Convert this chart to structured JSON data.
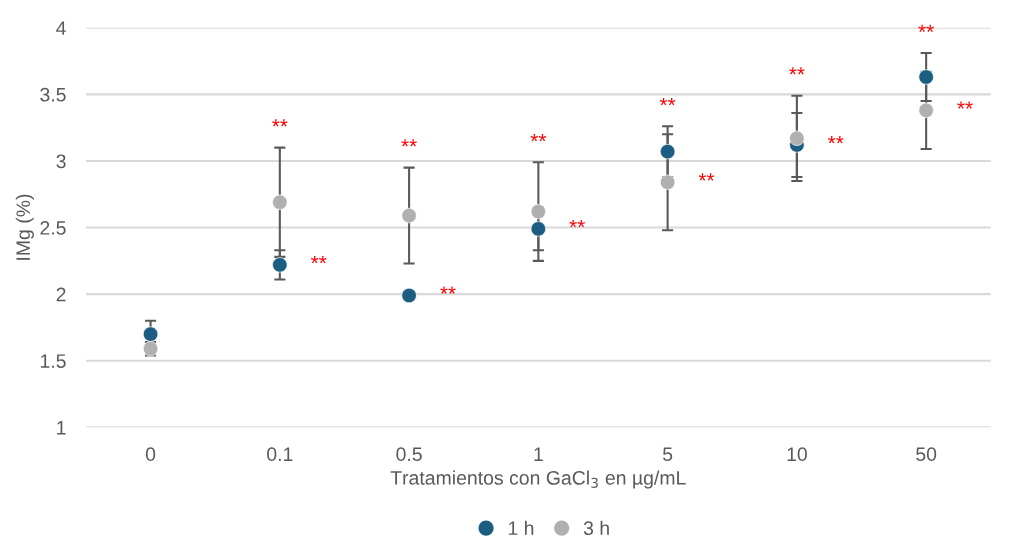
{
  "chart_data": {
    "type": "scatter",
    "xlabel": "Tratamientos con GaCl$_{3}$ en µg/mL",
    "ylabel": "IMg (%)",
    "categories": [
      "0",
      "0.1",
      "0.5",
      "1",
      "5",
      "10",
      "50"
    ],
    "series": [
      {
        "name": "1 h",
        "color": "#1b5e82",
        "values": [
          1.7,
          2.22,
          1.99,
          2.49,
          3.07,
          3.12,
          3.63
        ],
        "errors": [
          0.1,
          0.11,
          null,
          0.16,
          0.19,
          0.24,
          0.18
        ]
      },
      {
        "name": "3 h",
        "color": "#b0b0b0",
        "values": [
          1.59,
          2.69,
          2.59,
          2.62,
          2.84,
          3.17,
          3.38
        ],
        "errors": [
          0.05,
          0.41,
          0.36,
          0.37,
          0.36,
          0.32,
          0.29
        ]
      }
    ],
    "ylim": [
      1,
      4
    ],
    "yticks": [
      1,
      1.5,
      2,
      2.5,
      3,
      3.5,
      4
    ],
    "grid": "y",
    "legend": "bottom",
    "marker": "circle",
    "annotations": [
      {
        "text": "**",
        "x": "0.1",
        "y": 3.1
      },
      {
        "text": "**",
        "x": "0.1",
        "y": 2.22
      },
      {
        "text": "**",
        "x": "0.5",
        "y": 2.95
      },
      {
        "text": "**",
        "x": "0.5",
        "y": 1.99
      },
      {
        "text": "**",
        "x": "1",
        "y": 2.99
      },
      {
        "text": "**",
        "x": "1",
        "y": 2.49
      },
      {
        "text": "**",
        "x": "5",
        "y": 3.26
      },
      {
        "text": "**",
        "x": "5",
        "y": 2.84
      },
      {
        "text": "**",
        "x": "10",
        "y": 3.49
      },
      {
        "text": "**",
        "x": "10",
        "y": 3.12
      },
      {
        "text": "**",
        "x": "50",
        "y": 3.81
      },
      {
        "text": "**",
        "x": "50",
        "y": 3.38
      }
    ]
  }
}
